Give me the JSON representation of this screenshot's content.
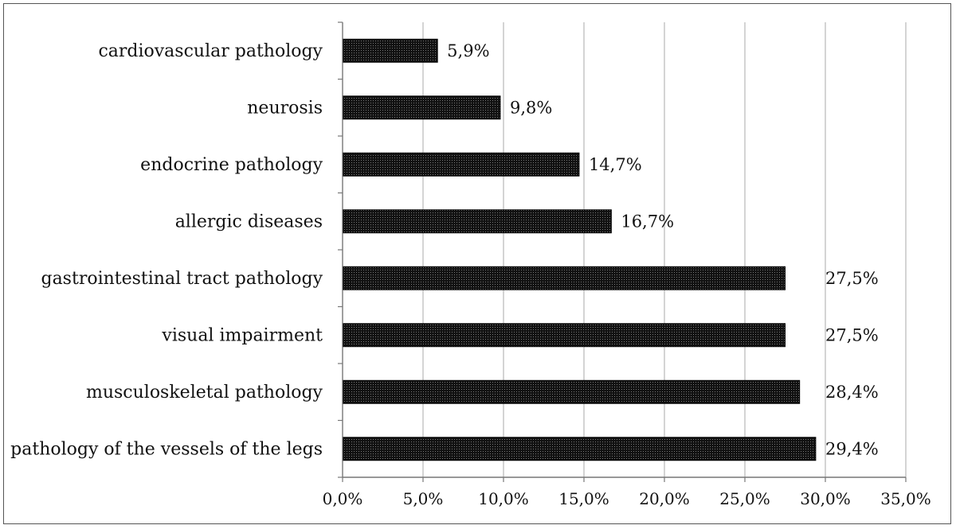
{
  "chart_data": {
    "type": "bar",
    "orientation": "horizontal",
    "categories": [
      "cardiovascular pathology",
      "neurosis",
      "endocrine pathology",
      "allergic diseases",
      "gastrointestinal tract pathology",
      "visual impairment",
      "musculoskeletal pathology",
      "pathology of the vessels of the legs"
    ],
    "values": [
      5.9,
      9.8,
      14.7,
      16.7,
      27.5,
      27.5,
      28.4,
      29.4
    ],
    "data_labels": [
      "5,9%",
      "9,8%",
      "14,7%",
      "16,7%",
      "27,5%",
      "27,5%",
      "28,4%",
      "29,4%"
    ],
    "xlim": [
      0,
      35
    ],
    "x_ticks": [
      0,
      5,
      10,
      15,
      20,
      25,
      30,
      35
    ],
    "x_tick_labels": [
      "0,0%",
      "5,0%",
      "10,0%",
      "15,0%",
      "20,0%",
      "25,0%",
      "30,0%",
      "35,0%"
    ],
    "grid": "vertical",
    "legend": "none",
    "bar_color": "#1a1a1a"
  }
}
